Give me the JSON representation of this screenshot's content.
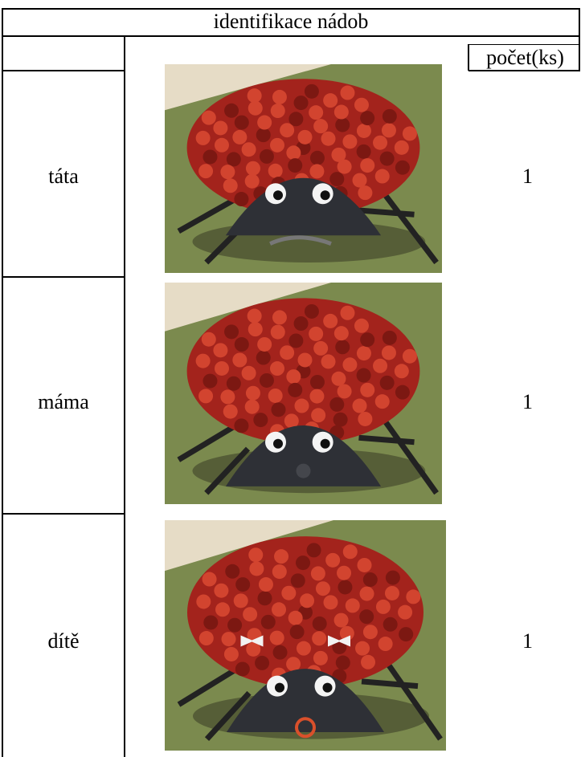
{
  "table": {
    "title": "identifikace nádob",
    "count_header": "počet(ks)",
    "rows": [
      {
        "label": "táta",
        "count": 1
      },
      {
        "label": "máma",
        "count": 1
      },
      {
        "label": "dítě",
        "count": 1
      }
    ]
  }
}
